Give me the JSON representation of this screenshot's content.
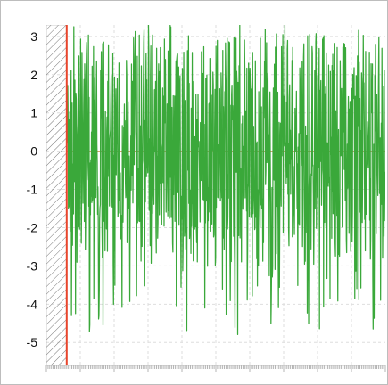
{
  "chart_data": {
    "type": "line",
    "title": "",
    "xlabel": "",
    "ylabel": "",
    "ylim": [
      -5.6,
      3.3
    ],
    "xlim": [
      0,
      1000
    ],
    "yticks": [
      3,
      2,
      1,
      0,
      -1,
      -2,
      -3,
      -4,
      -5
    ],
    "ytick_labels": [
      "3",
      "2",
      "1",
      "0",
      "-1",
      "-2",
      "-3",
      "-4",
      "-5"
    ],
    "grid": true,
    "legend": "none",
    "cursor_x": 60,
    "shaded_region_x": [
      0,
      60
    ],
    "baseline_y": 0,
    "colors": {
      "series": "#3aa83a",
      "cursor": "#e8452c",
      "baseline": "#d2a36b",
      "hatch": "#777777",
      "grid": "#dedede"
    },
    "series": [
      {
        "generated_from": "dense noisy signal",
        "seed": 20240611,
        "x_start": 60,
        "x_end": 1000,
        "count": 940,
        "min": -5.5,
        "max": 3.3
      }
    ]
  }
}
